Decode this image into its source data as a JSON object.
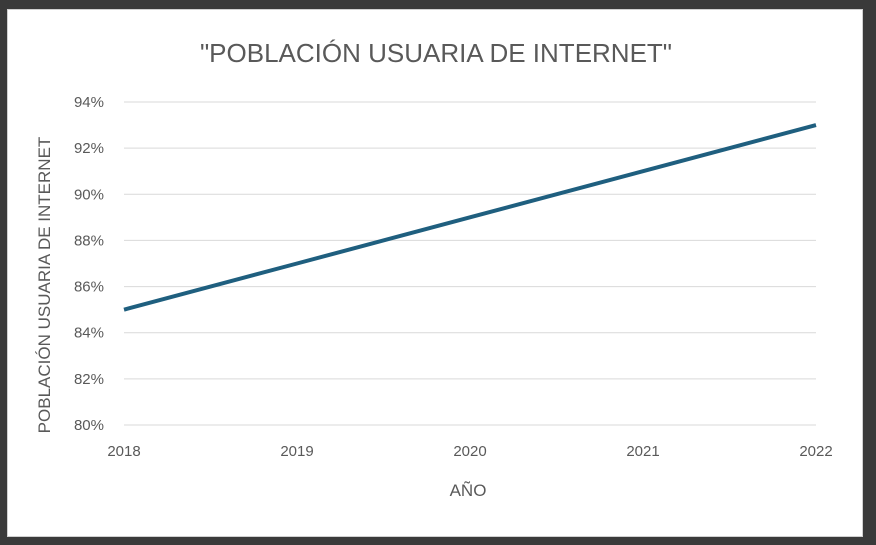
{
  "chart_data": {
    "type": "line",
    "title": "\"POBLACIÓN USUARIA DE INTERNET\"",
    "xlabel": "AÑO",
    "ylabel": "POBLACIÓN USUARIA DE INTERNET",
    "categories": [
      "2018",
      "2019",
      "2020",
      "2021",
      "2022"
    ],
    "series": [
      {
        "values": [
          0.85,
          0.87,
          0.89,
          0.91,
          0.93
        ],
        "color": "#1f5f7f"
      }
    ],
    "ylim": [
      0.8,
      0.94
    ],
    "yticks": [
      0.8,
      0.82,
      0.84,
      0.86,
      0.88,
      0.9,
      0.92,
      0.94
    ],
    "ytick_labels": [
      "80%",
      "82%",
      "84%",
      "86%",
      "88%",
      "90%",
      "92%",
      "94%"
    ],
    "grid": true,
    "legend": "none"
  }
}
